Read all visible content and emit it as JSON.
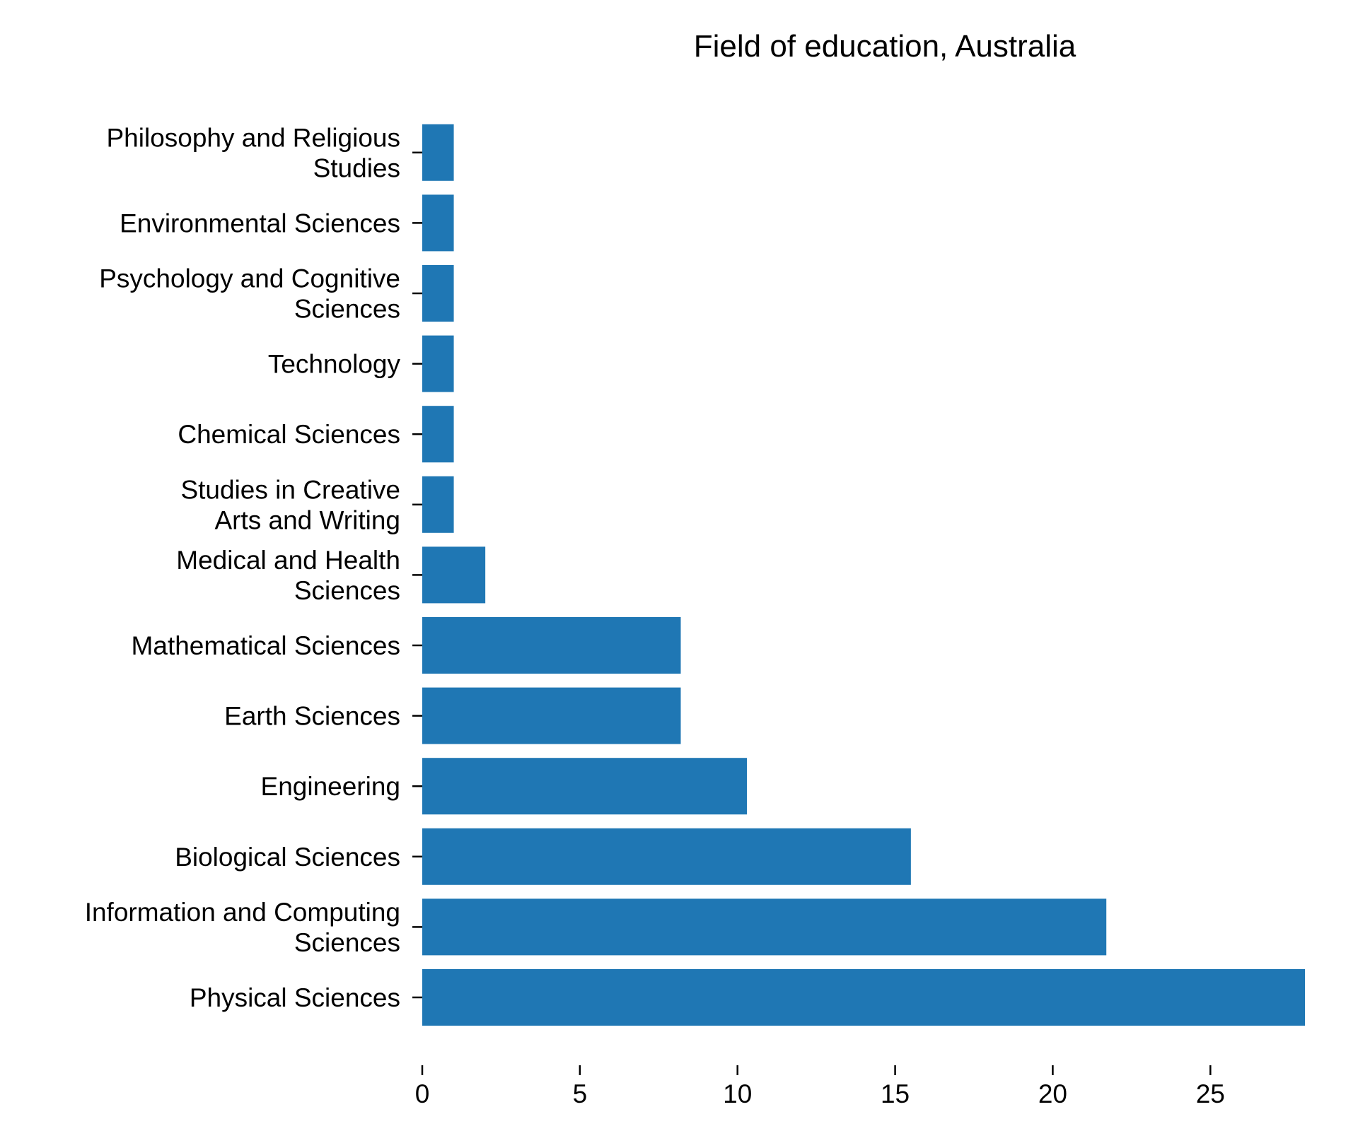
{
  "chart_data": {
    "type": "bar",
    "orientation": "horizontal",
    "title": "Field of education, Australia",
    "xlabel": "",
    "ylabel": "",
    "categories": [
      [
        "Physical Sciences"
      ],
      [
        "Information and Computing",
        "Sciences"
      ],
      [
        "Biological Sciences"
      ],
      [
        "Engineering"
      ],
      [
        "Earth Sciences"
      ],
      [
        "Mathematical Sciences"
      ],
      [
        "Medical and Health",
        "Sciences"
      ],
      [
        "Studies in Creative",
        "Arts and Writing"
      ],
      [
        "Chemical Sciences"
      ],
      [
        "Technology"
      ],
      [
        "Psychology and Cognitive",
        "Sciences"
      ],
      [
        "Environmental Sciences"
      ],
      [
        "Philosophy and Religious",
        "Studies"
      ]
    ],
    "values": [
      28,
      21.7,
      15.5,
      10.3,
      8.2,
      8.2,
      2,
      1,
      1,
      1,
      1,
      1,
      1
    ],
    "xlim": [
      0,
      28
    ],
    "xticks": [
      "0",
      "5",
      "10",
      "15",
      "20",
      "25"
    ],
    "grid": false,
    "bar_color": "#1f77b4"
  }
}
